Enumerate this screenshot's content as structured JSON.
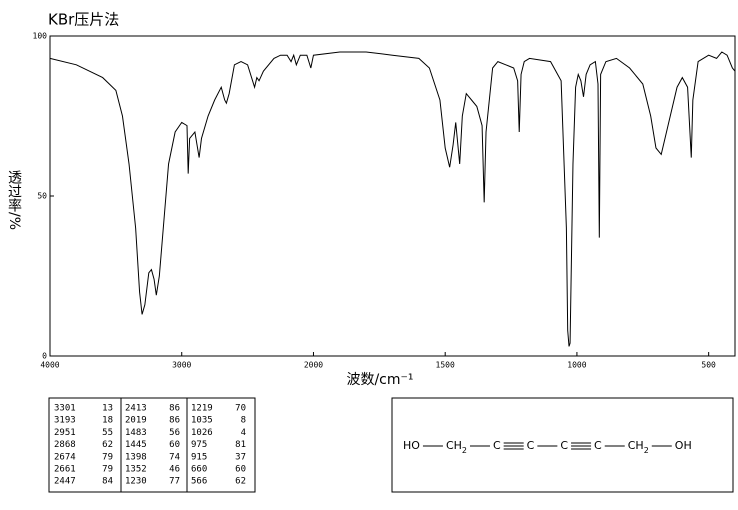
{
  "chart_data": {
    "type": "line",
    "title": "KBr压片法",
    "xlabel": "波数/cm⁻¹",
    "ylabel": "透过率/%",
    "xlim": [
      4000,
      400
    ],
    "ylim": [
      0,
      100
    ],
    "xticks": [
      4000,
      3000,
      2000,
      1500,
      1000,
      500
    ],
    "yticks": [
      0,
      50,
      100
    ],
    "x": [
      4000,
      3800,
      3600,
      3500,
      3450,
      3400,
      3350,
      3320,
      3301,
      3280,
      3250,
      3230,
      3210,
      3193,
      3170,
      3130,
      3100,
      3050,
      3000,
      2960,
      2951,
      2940,
      2900,
      2868,
      2850,
      2800,
      2750,
      2700,
      2674,
      2661,
      2640,
      2600,
      2550,
      2500,
      2447,
      2430,
      2413,
      2380,
      2300,
      2250,
      2200,
      2170,
      2150,
      2130,
      2100,
      2050,
      2020,
      2000,
      1900,
      1800,
      1700,
      1600,
      1560,
      1520,
      1500,
      1483,
      1470,
      1460,
      1445,
      1435,
      1420,
      1400,
      1380,
      1360,
      1352,
      1345,
      1320,
      1300,
      1270,
      1240,
      1225,
      1219,
      1212,
      1200,
      1180,
      1100,
      1060,
      1040,
      1035,
      1030,
      1026,
      1015,
      1005,
      995,
      985,
      975,
      965,
      950,
      930,
      920,
      915,
      910,
      890,
      850,
      800,
      750,
      720,
      700,
      680,
      660,
      620,
      600,
      580,
      566,
      560,
      540,
      500,
      470,
      450,
      430,
      410,
      400
    ],
    "series": [
      {
        "name": "spectrum",
        "color": "#000000",
        "values": [
          93,
          91,
          87,
          83,
          75,
          60,
          40,
          20,
          13,
          16,
          26,
          27,
          24,
          19,
          25,
          45,
          60,
          70,
          73,
          72,
          57,
          68,
          70,
          62,
          68,
          75,
          80,
          84,
          80,
          79,
          82,
          91,
          92,
          91,
          84,
          87,
          86,
          89,
          93,
          94,
          94,
          92,
          94,
          91,
          94,
          94,
          90,
          94,
          95,
          95,
          94,
          93,
          90,
          80,
          65,
          59,
          66,
          73,
          60,
          75,
          82,
          80,
          78,
          72,
          48,
          70,
          90,
          92,
          91,
          90,
          86,
          70,
          88,
          92,
          93,
          92,
          86,
          40,
          8,
          3,
          4,
          60,
          84,
          88,
          86,
          81,
          88,
          91,
          92,
          85,
          37,
          88,
          92,
          93,
          90,
          85,
          75,
          65,
          63,
          70,
          84,
          87,
          84,
          62,
          80,
          92,
          94,
          93,
          95,
          94,
          90,
          89
        ]
      }
    ]
  },
  "peak_table": {
    "columns": [
      [
        [
          "3301",
          "13"
        ],
        [
          "3193",
          "18"
        ],
        [
          "2951",
          "55"
        ],
        [
          "2868",
          "62"
        ],
        [
          "2674",
          "79"
        ],
        [
          "2661",
          "79"
        ],
        [
          "2447",
          "84"
        ]
      ],
      [
        [
          "2413",
          "86"
        ],
        [
          "2019",
          "86"
        ],
        [
          "1483",
          "56"
        ],
        [
          "1445",
          "60"
        ],
        [
          "1398",
          "74"
        ],
        [
          "1352",
          "46"
        ],
        [
          "1230",
          "77"
        ]
      ],
      [
        [
          "1219",
          "70"
        ],
        [
          "1035",
          "8"
        ],
        [
          "1026",
          "4"
        ],
        [
          "975",
          "81"
        ],
        [
          "915",
          "37"
        ],
        [
          "660",
          "60"
        ],
        [
          "566",
          "62"
        ]
      ]
    ]
  },
  "structure": {
    "groups": [
      {
        "text": "HO"
      },
      {
        "text": "CH",
        "sub": "2"
      },
      {
        "text": "C"
      },
      {
        "text": "C"
      },
      {
        "text": "C"
      },
      {
        "text": "C"
      },
      {
        "text": "CH",
        "sub": "2"
      },
      {
        "text": "OH"
      }
    ]
  }
}
